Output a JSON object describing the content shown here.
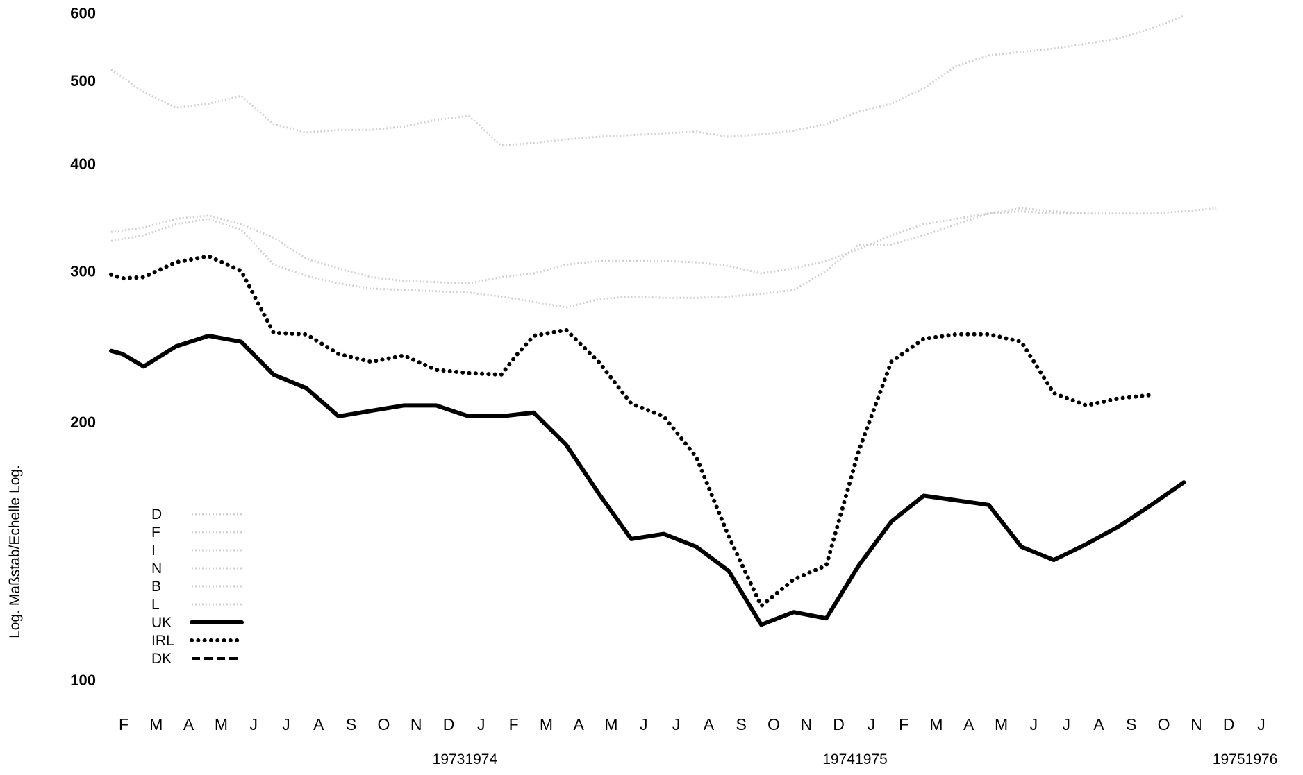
{
  "chart_data": {
    "type": "line",
    "ylabel": "Log. Maßstab/Echelle Log.",
    "yscale": "log",
    "ylim": [
      100,
      600
    ],
    "yticks": [
      "100",
      "200",
      "300",
      "400",
      "500",
      "600"
    ],
    "x_month_labels": [
      "F",
      "M",
      "A",
      "M",
      "J",
      "J",
      "A",
      "S",
      "O",
      "N",
      "D",
      "J",
      "F",
      "M",
      "A",
      "M",
      "J",
      "J",
      "A",
      "S",
      "O",
      "N",
      "D",
      "J",
      "F",
      "M",
      "A",
      "M",
      "J",
      "J",
      "A",
      "S",
      "O",
      "N",
      "D",
      "J"
    ],
    "year_labels": [
      {
        "text": "1973",
        "after_index": 10
      },
      {
        "text": "1974",
        "after_index": 11
      },
      {
        "text": "1974",
        "after_index": 22
      },
      {
        "text": "1975",
        "after_index": 23
      },
      {
        "text": "1975",
        "after_index": 34
      },
      {
        "text": "1976",
        "after_index": 35
      }
    ],
    "legend": [
      {
        "label": "D",
        "style": "faint"
      },
      {
        "label": "F",
        "style": "faint"
      },
      {
        "label": "I",
        "style": "faint"
      },
      {
        "label": "N",
        "style": "faint"
      },
      {
        "label": "B",
        "style": "faint"
      },
      {
        "label": "L",
        "style": "faint"
      },
      {
        "label": "UK",
        "style": "solid"
      },
      {
        "label": "IRL",
        "style": "dotted"
      },
      {
        "label": "DK",
        "style": "dashed"
      }
    ],
    "series": [
      {
        "name": "UK",
        "style": "solid",
        "color": "#000000",
        "x": [
          0,
          0.35,
          1,
          2,
          3,
          4,
          5,
          6,
          7,
          8,
          9,
          10,
          11,
          12,
          13,
          14,
          15,
          16,
          17,
          18,
          19,
          20,
          21,
          22,
          23,
          24,
          25,
          26,
          27,
          28,
          29,
          30,
          31,
          32,
          33
        ],
        "y": [
          242,
          240,
          232,
          245,
          252,
          248,
          227,
          219,
          203,
          206,
          209,
          209,
          203,
          203,
          205,
          188,
          165,
          146,
          148,
          143,
          134,
          116,
          120,
          118,
          136,
          153,
          164,
          162,
          160,
          143,
          138,
          144,
          151,
          160,
          170
        ]
      },
      {
        "name": "IRL",
        "style": "dotted",
        "color": "#000000",
        "x": [
          0,
          0.35,
          1,
          2,
          3,
          4,
          5,
          6,
          7,
          8,
          9,
          10,
          11,
          12,
          12.5,
          13,
          14,
          15,
          16,
          17,
          18,
          19,
          20,
          21,
          22,
          23,
          24,
          25,
          26,
          27,
          28,
          29,
          30,
          31,
          32
        ],
        "y": [
          297,
          294,
          295,
          307,
          312,
          300,
          254,
          253,
          240,
          235,
          239,
          230,
          228,
          227,
          240,
          252,
          256,
          235,
          210,
          203,
          182,
          147,
          122,
          131,
          136,
          185,
          235,
          250,
          253,
          253,
          248,
          216,
          209,
          213,
          215
        ]
      },
      {
        "name": "faint-upper",
        "style": "faint",
        "color": "#bdbdbd",
        "x": [
          0,
          1,
          2,
          3,
          4,
          5,
          6,
          7,
          8,
          9,
          10,
          11,
          12,
          13,
          14,
          15,
          16,
          17,
          18,
          19,
          20,
          21,
          22,
          23,
          24,
          25,
          26,
          27,
          28,
          29,
          30,
          31,
          32,
          33
        ],
        "y": [
          515,
          485,
          465,
          470,
          480,
          445,
          435,
          438,
          438,
          442,
          450,
          455,
          420,
          423,
          427,
          430,
          432,
          434,
          436,
          430,
          433,
          437,
          445,
          460,
          470,
          490,
          520,
          535,
          540,
          545,
          552,
          560,
          575,
          595
        ]
      },
      {
        "name": "faint-middle",
        "style": "faint",
        "color": "#bdbdbd",
        "x": [
          0,
          1,
          2,
          3,
          4,
          5,
          6,
          7,
          8,
          9,
          10,
          11,
          12,
          13,
          14,
          15,
          16,
          17,
          18,
          19,
          20,
          21,
          22,
          23,
          24,
          25,
          26,
          27,
          28,
          29,
          30,
          31,
          32,
          33,
          34
        ],
        "y": [
          333,
          337,
          345,
          348,
          340,
          328,
          310,
          302,
          295,
          292,
          291,
          290,
          295,
          298,
          305,
          308,
          308,
          308,
          307,
          304,
          298,
          302,
          308,
          318,
          330,
          340,
          345,
          350,
          355,
          352,
          350,
          350,
          350,
          352,
          355
        ]
      },
      {
        "name": "faint-lower",
        "style": "faint",
        "color": "#bdbdbd",
        "x": [
          0,
          1,
          2,
          3,
          4,
          5,
          6,
          7,
          8,
          9,
          10,
          11,
          12,
          13,
          14,
          15,
          16,
          17,
          18,
          19,
          20,
          21,
          22,
          23,
          24,
          25,
          26,
          27,
          28,
          29,
          30
        ],
        "y": [
          325,
          330,
          340,
          345,
          335,
          305,
          296,
          290,
          286,
          285,
          284,
          283,
          280,
          276,
          272,
          278,
          280,
          279,
          279,
          280,
          282,
          285,
          300,
          322,
          322,
          330,
          340,
          350,
          352,
          350,
          350
        ]
      }
    ]
  }
}
